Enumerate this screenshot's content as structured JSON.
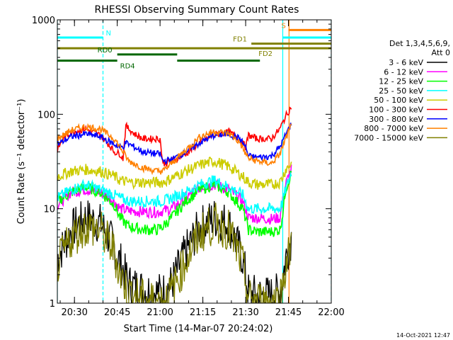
{
  "chart_data": {
    "type": "line",
    "title": "RHESSI Observing Summary Count Rates",
    "xlabel": "Start Time (14-Mar-07 20:24:02)",
    "ylabel": "Count Rate (s⁻¹ detector⁻¹)",
    "x_unit": "minutes after 20:24:02",
    "xlim": [
      0,
      96
    ],
    "ylim": [
      1,
      1000
    ],
    "yscale": "log",
    "x_ticks": [
      {
        "x": 6,
        "label": "20:30"
      },
      {
        "x": 21,
        "label": "20:45"
      },
      {
        "x": 36,
        "label": "21:00"
      },
      {
        "x": 51,
        "label": "21:15"
      },
      {
        "x": 66,
        "label": "21:30"
      },
      {
        "x": 81,
        "label": "21:45"
      },
      {
        "x": 96,
        "label": "22:00"
      }
    ],
    "y_ticks": [
      {
        "y": 1,
        "label": "1"
      },
      {
        "y": 10,
        "label": "10"
      },
      {
        "y": 100,
        "label": "100"
      },
      {
        "y": 1000,
        "label": "1000"
      }
    ],
    "legend": {
      "placement": "right",
      "header": [
        "Det 1,3,4,5,6,9,",
        "Att 0"
      ]
    },
    "series": [
      {
        "name": "3 - 6 keV",
        "color": "#000000",
        "x": [
          0,
          5,
          10,
          15,
          20,
          21,
          22,
          25,
          30,
          35,
          37,
          40,
          45,
          50,
          55,
          60,
          65,
          67,
          70,
          75,
          78,
          79,
          80,
          82
        ],
        "y": [
          3,
          6,
          8,
          7,
          4,
          3,
          2.8,
          1.6,
          1.4,
          1.3,
          1.3,
          1.6,
          3.5,
          6.5,
          8,
          7,
          3,
          1.3,
          1.2,
          1.2,
          1.3,
          1.8,
          3,
          5
        ]
      },
      {
        "name": "6 - 12 keV",
        "color": "#ff00ff",
        "x": [
          0,
          5,
          10,
          15,
          20,
          22,
          25,
          30,
          35,
          37,
          40,
          45,
          50,
          55,
          60,
          65,
          67,
          70,
          75,
          78,
          79,
          80,
          82
        ],
        "y": [
          11,
          15,
          16,
          15,
          12,
          10,
          9.5,
          9.3,
          9.2,
          9.5,
          10,
          13,
          17,
          18,
          16,
          12,
          8,
          8,
          7.8,
          8,
          12,
          18,
          26
        ]
      },
      {
        "name": "12 - 25 keV",
        "color": "#00ff00",
        "x": [
          0,
          5,
          10,
          15,
          20,
          22,
          25,
          30,
          35,
          37,
          40,
          45,
          50,
          55,
          60,
          65,
          67,
          70,
          75,
          78,
          79,
          80,
          82
        ],
        "y": [
          12,
          15,
          17,
          15,
          11,
          8,
          6.5,
          6,
          6,
          6.5,
          8,
          12,
          16,
          18,
          15,
          10,
          6,
          5.7,
          5.7,
          6,
          9,
          16,
          24
        ]
      },
      {
        "name": "25 - 50 keV",
        "color": "#00ffff",
        "x": [
          0,
          5,
          10,
          15,
          20,
          22,
          25,
          30,
          35,
          37,
          40,
          45,
          50,
          55,
          60,
          65,
          67,
          70,
          75,
          78,
          79,
          80,
          82
        ],
        "y": [
          13,
          16,
          18,
          16,
          14,
          13,
          12,
          12,
          12,
          12,
          13,
          15,
          18,
          20,
          17,
          14,
          10,
          10,
          10,
          10,
          12,
          16,
          24
        ]
      },
      {
        "name": "50 - 100 keV",
        "color": "#cccc00",
        "x": [
          0,
          5,
          10,
          15,
          20,
          22,
          25,
          30,
          35,
          37,
          40,
          45,
          50,
          55,
          60,
          65,
          67,
          70,
          75,
          78,
          79,
          80,
          82
        ],
        "y": [
          22,
          25,
          26,
          25,
          22,
          20,
          19,
          19,
          19,
          19,
          21,
          25,
          29,
          32,
          28,
          22,
          19,
          18,
          18,
          19,
          22,
          26,
          30
        ]
      },
      {
        "name": "100 - 300 keV",
        "color": "#ff0000",
        "x": [
          0,
          2,
          5,
          10,
          15,
          18,
          20,
          22,
          23,
          24,
          27,
          30,
          35,
          36,
          37,
          40,
          45,
          50,
          55,
          60,
          64,
          66,
          67,
          70,
          75,
          78,
          80,
          82
        ],
        "y": [
          42,
          55,
          65,
          70,
          60,
          48,
          40,
          38,
          34,
          75,
          62,
          55,
          55,
          55,
          30,
          32,
          38,
          50,
          60,
          65,
          55,
          45,
          60,
          55,
          55,
          70,
          95,
          120
        ]
      },
      {
        "name": "300 - 800 keV",
        "color": "#0000ff",
        "x": [
          0,
          5,
          10,
          15,
          20,
          22,
          23,
          24,
          27,
          30,
          35,
          36,
          37,
          40,
          45,
          50,
          55,
          60,
          64,
          66,
          67,
          70,
          75,
          78,
          80,
          82
        ],
        "y": [
          48,
          58,
          62,
          58,
          48,
          45,
          45,
          50,
          45,
          40,
          38,
          38,
          32,
          33,
          40,
          50,
          60,
          62,
          55,
          45,
          36,
          35,
          36,
          45,
          60,
          80
        ]
      },
      {
        "name": "800 - 7000 keV",
        "color": "#ff8000",
        "x": [
          0,
          5,
          10,
          15,
          20,
          22,
          25,
          30,
          35,
          37,
          40,
          45,
          50,
          55,
          60,
          64,
          66,
          67,
          70,
          75,
          78,
          80,
          82
        ],
        "y": [
          55,
          68,
          74,
          70,
          55,
          45,
          32,
          27,
          25,
          25,
          30,
          42,
          58,
          66,
          63,
          50,
          38,
          34,
          32,
          30,
          38,
          55,
          75
        ]
      },
      {
        "name": "7000 - 15000 keV",
        "color": "#808000",
        "x": [
          0,
          5,
          10,
          15,
          20,
          21,
          22,
          25,
          30,
          35,
          37,
          40,
          45,
          50,
          55,
          60,
          65,
          67,
          70,
          75,
          78,
          79,
          80,
          82
        ],
        "y": [
          2.5,
          5,
          6.5,
          6,
          3.5,
          2.6,
          2,
          1.3,
          1.1,
          1.05,
          1.05,
          1.3,
          2.8,
          5.5,
          7,
          6,
          2.5,
          1.1,
          1.05,
          1.05,
          1.1,
          1.6,
          2.5,
          4
        ]
      }
    ],
    "flags": [
      {
        "name": "N",
        "color": "#00ffff",
        "y": 650,
        "label": "N",
        "segments": [
          [
            0,
            16
          ]
        ]
      },
      {
        "name": "S",
        "color": "#00ffff",
        "y": 650,
        "label": "",
        "segments": [
          [
            79,
            96
          ]
        ]
      },
      {
        "name": "S-label",
        "color": "#ff8000",
        "y": 780,
        "label": "S",
        "segments": [
          [
            81,
            96
          ]
        ]
      },
      {
        "name": "FD1",
        "color": "#808000",
        "y": 560,
        "label": "FD1",
        "segments": [
          [
            68,
            96
          ]
        ]
      },
      {
        "name": "FD2",
        "color": "#808000",
        "y": 500,
        "label": "FD2",
        "segments": [
          [
            0,
            96
          ]
        ]
      },
      {
        "name": "RD0",
        "color": "#006600",
        "y": 430,
        "label": "RD0",
        "segments": [
          [
            21,
            42
          ]
        ]
      },
      {
        "name": "RD4",
        "color": "#006600",
        "y": 370,
        "label": "RD4",
        "segments": [
          [
            0,
            21
          ],
          [
            42,
            71
          ]
        ]
      }
    ],
    "vlines": [
      {
        "x": 0,
        "color": "#00ffff",
        "style": "solid"
      },
      {
        "x": 16,
        "color": "#00ffff",
        "style": "dashed"
      },
      {
        "x": 79,
        "color": "#00ffff",
        "style": "solid"
      },
      {
        "x": 81.2,
        "color": "#ff8000",
        "style": "solid"
      },
      {
        "x": 96,
        "color": "#00ffff",
        "style": "dashed"
      }
    ]
  },
  "footer": {
    "timestamp": "14-Oct-2021 12:47"
  }
}
